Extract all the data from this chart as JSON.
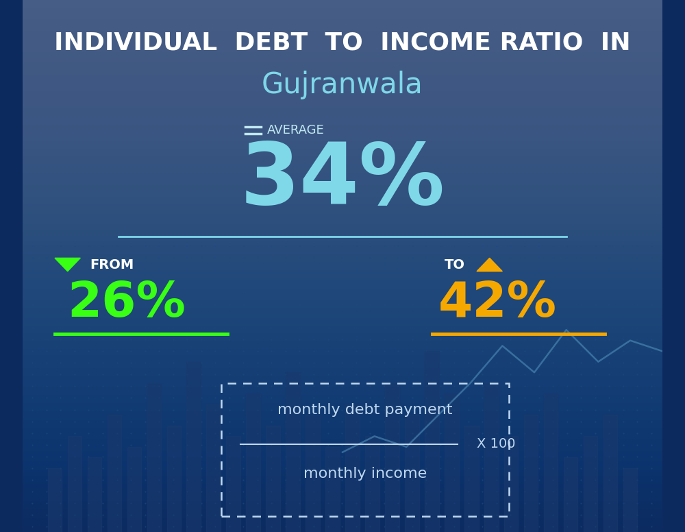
{
  "title_line1": "INDIVIDUAL  DEBT  TO  INCOME RATIO  IN",
  "title_line2": "Gujranwala",
  "average_label": "AVERAGE",
  "average_value": "34%",
  "from_label": "FROM",
  "from_value": "26%",
  "to_label": "TO",
  "to_value": "42%",
  "formula_top": "monthly debt payment",
  "formula_bottom": "monthly income",
  "formula_multiplier": "X 100",
  "bg_color": "#0d2a5e",
  "title1_color": "#ffffff",
  "title2_color": "#7fd8e8",
  "average_label_color": "#c0e8f0",
  "average_value_color": "#7fd8e8",
  "from_label_color": "#ffffff",
  "from_value_color": "#39ff14",
  "to_label_color": "#ffffff",
  "to_value_color": "#f5a800",
  "line_color": "#7fd8e8",
  "from_underline_color": "#39ff14",
  "to_underline_color": "#f5a800",
  "formula_color": "#c0d8f0",
  "chart_line_color": "#5a9ec9",
  "bar_color": "#1a3a6e",
  "dot_color": "#1e4a80"
}
